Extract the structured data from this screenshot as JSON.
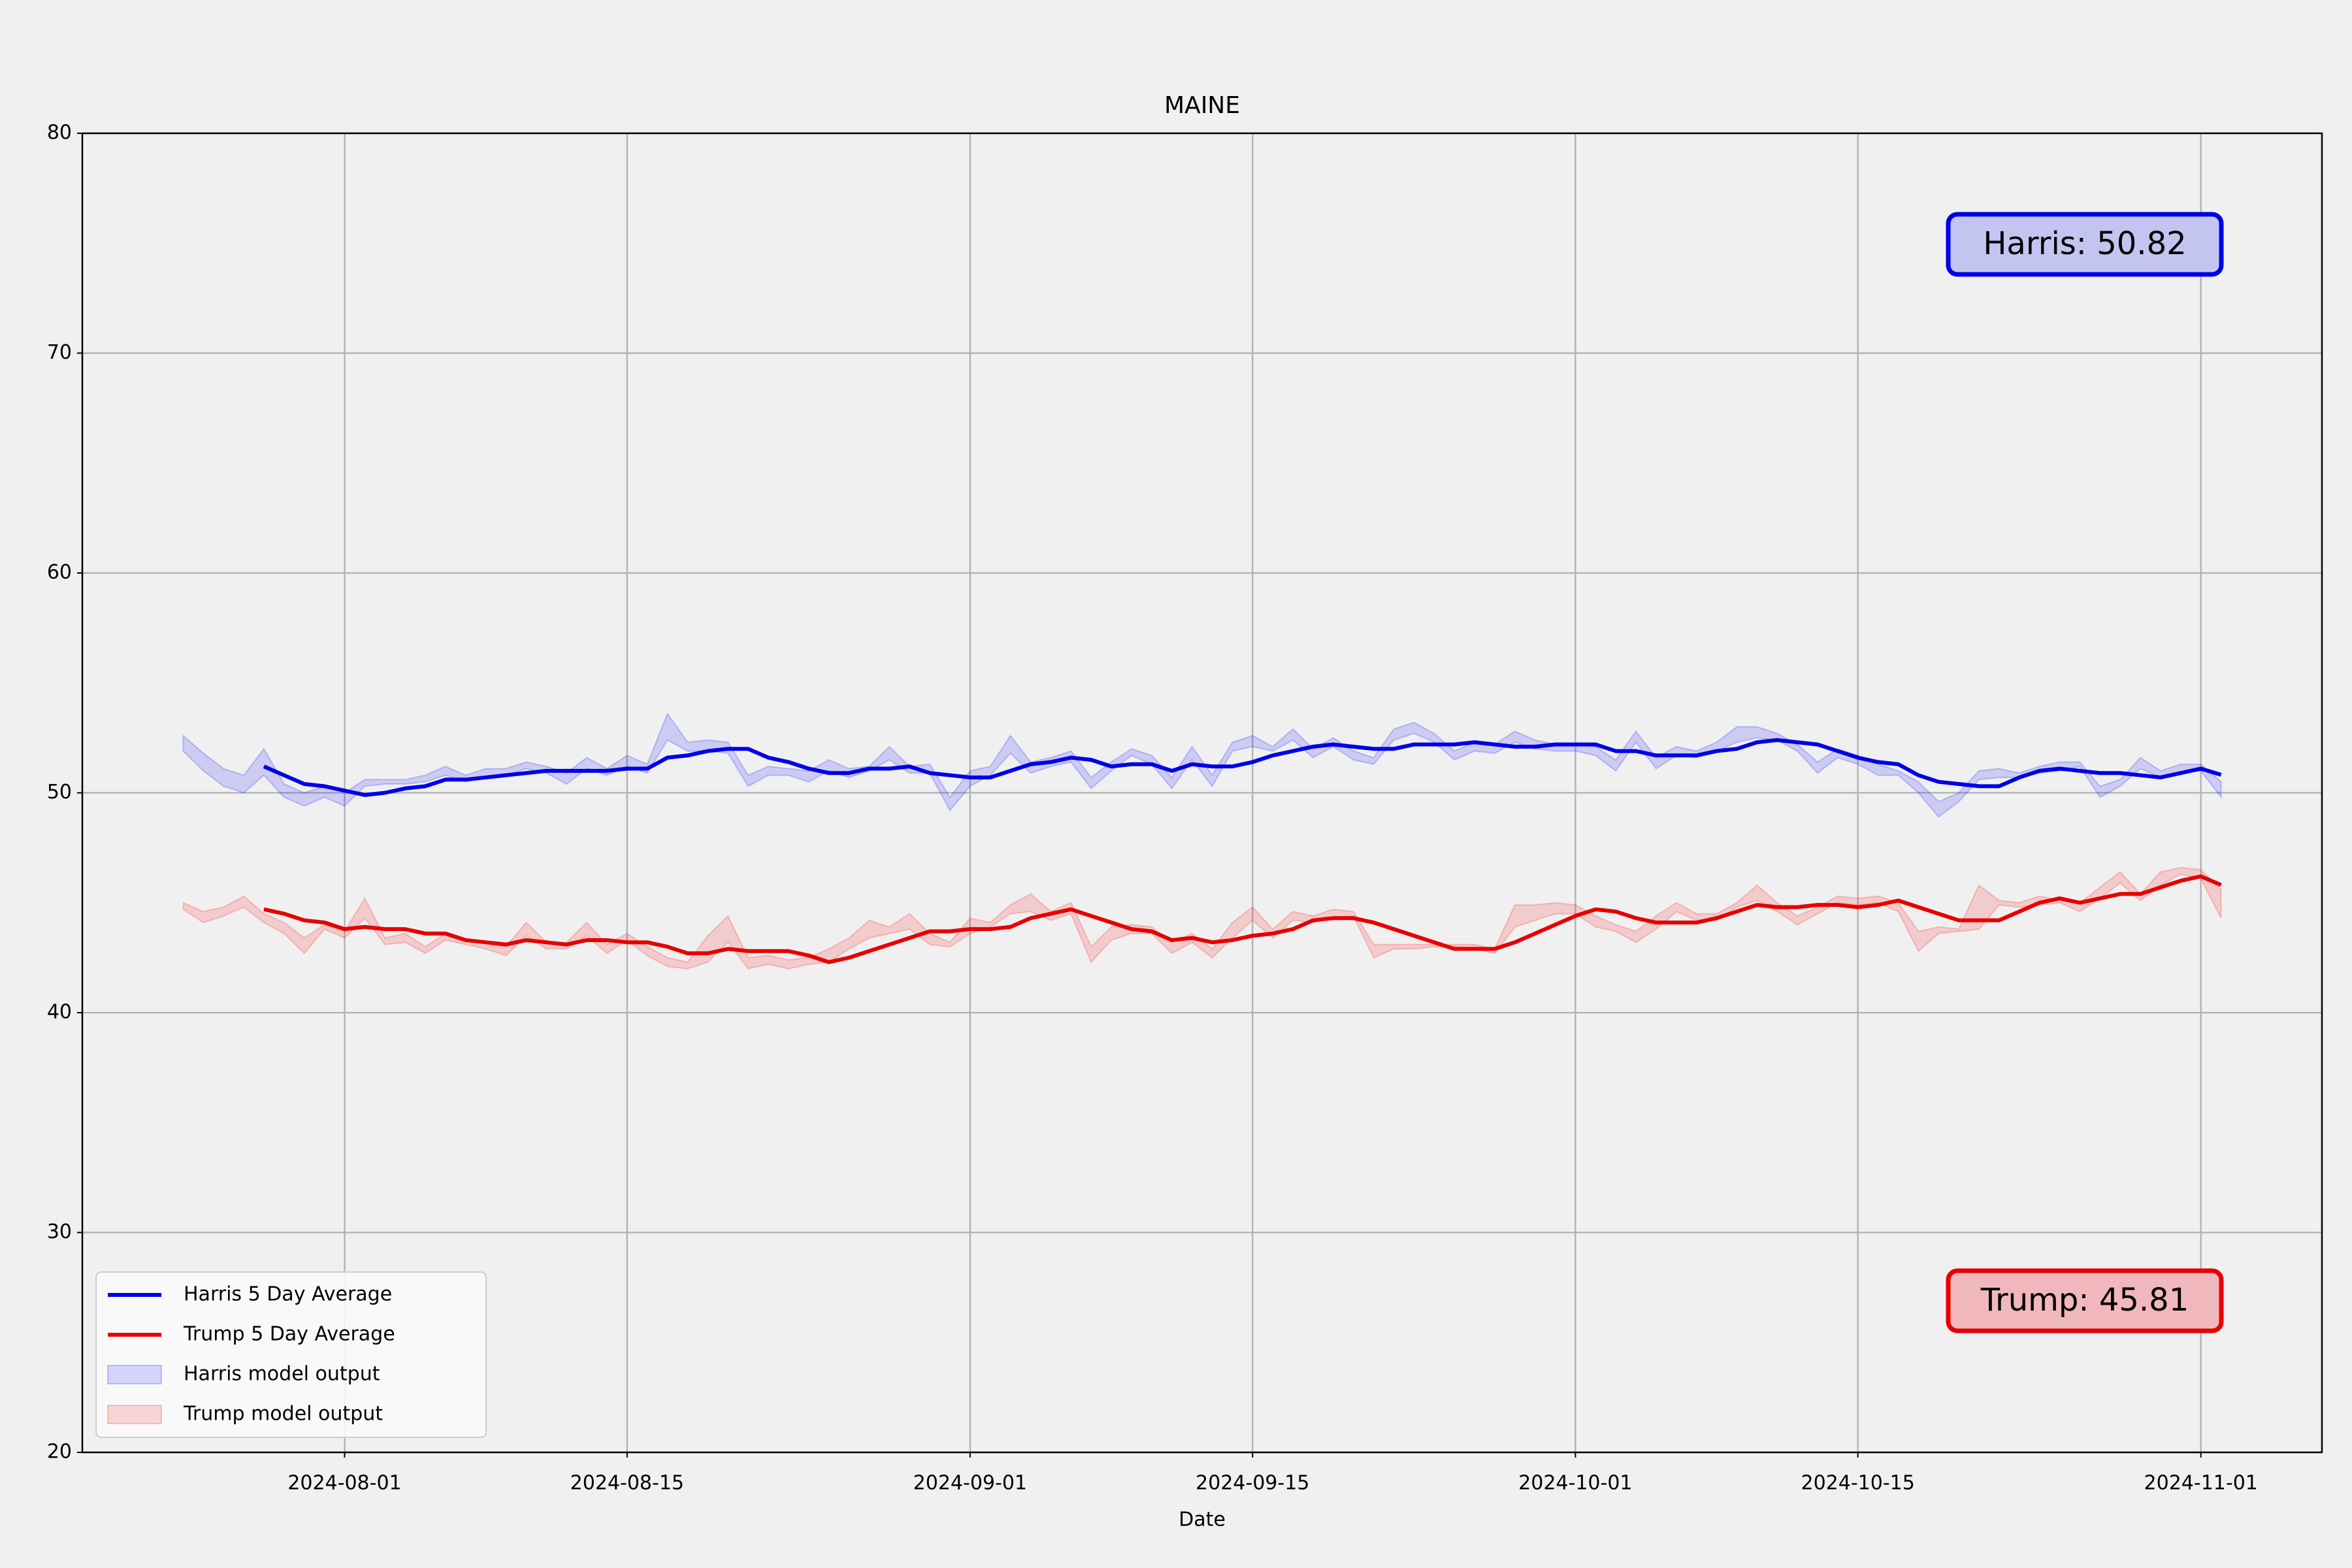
{
  "chart_data": {
    "type": "line",
    "title": "MAINE",
    "xlabel": "Date",
    "x": [
      "2024-07-24",
      "2024-07-25",
      "2024-07-26",
      "2024-07-27",
      "2024-07-28",
      "2024-07-29",
      "2024-07-30",
      "2024-07-31",
      "2024-08-01",
      "2024-08-02",
      "2024-08-03",
      "2024-08-04",
      "2024-08-05",
      "2024-08-06",
      "2024-08-07",
      "2024-08-08",
      "2024-08-09",
      "2024-08-10",
      "2024-08-11",
      "2024-08-12",
      "2024-08-13",
      "2024-08-14",
      "2024-08-15",
      "2024-08-16",
      "2024-08-17",
      "2024-08-18",
      "2024-08-19",
      "2024-08-20",
      "2024-08-21",
      "2024-08-22",
      "2024-08-23",
      "2024-08-24",
      "2024-08-25",
      "2024-08-26",
      "2024-08-27",
      "2024-08-28",
      "2024-08-29",
      "2024-08-30",
      "2024-08-31",
      "2024-09-01",
      "2024-09-02",
      "2024-09-03",
      "2024-09-04",
      "2024-09-05",
      "2024-09-06",
      "2024-09-07",
      "2024-09-08",
      "2024-09-09",
      "2024-09-10",
      "2024-09-11",
      "2024-09-12",
      "2024-09-13",
      "2024-09-14",
      "2024-09-15",
      "2024-09-16",
      "2024-09-17",
      "2024-09-18",
      "2024-09-19",
      "2024-09-20",
      "2024-09-21",
      "2024-09-22",
      "2024-09-23",
      "2024-09-24",
      "2024-09-25",
      "2024-09-26",
      "2024-09-27",
      "2024-09-28",
      "2024-09-29",
      "2024-09-30",
      "2024-10-01",
      "2024-10-02",
      "2024-10-03",
      "2024-10-04",
      "2024-10-05",
      "2024-10-06",
      "2024-10-07",
      "2024-10-08",
      "2024-10-09",
      "2024-10-10",
      "2024-10-11",
      "2024-10-12",
      "2024-10-13",
      "2024-10-14",
      "2024-10-15",
      "2024-10-16",
      "2024-10-17",
      "2024-10-18",
      "2024-10-19",
      "2024-10-20",
      "2024-10-21",
      "2024-10-22",
      "2024-10-23",
      "2024-10-24",
      "2024-10-25",
      "2024-10-26",
      "2024-10-27",
      "2024-10-28",
      "2024-10-29",
      "2024-10-30",
      "2024-10-31",
      "2024-11-01",
      "2024-11-02"
    ],
    "series": [
      {
        "name": "Harris 5 Day Average",
        "color": "#0000e6",
        "values": [
          null,
          null,
          null,
          null,
          51.2,
          50.8,
          50.4,
          50.3,
          50.1,
          49.9,
          50.0,
          50.2,
          50.3,
          50.6,
          50.6,
          50.7,
          50.8,
          50.9,
          51.0,
          51.0,
          51.0,
          51.0,
          51.1,
          51.1,
          51.6,
          51.7,
          51.9,
          52.0,
          52.0,
          51.6,
          51.4,
          51.1,
          50.9,
          50.9,
          51.1,
          51.1,
          51.2,
          50.9,
          50.8,
          50.7,
          50.7,
          51.0,
          51.3,
          51.4,
          51.6,
          51.5,
          51.2,
          51.3,
          51.3,
          51.0,
          51.3,
          51.2,
          51.2,
          51.4,
          51.7,
          51.9,
          52.1,
          52.2,
          52.1,
          52.0,
          52.0,
          52.2,
          52.2,
          52.2,
          52.3,
          52.2,
          52.1,
          52.1,
          52.2,
          52.2,
          52.2,
          51.9,
          51.9,
          51.7,
          51.7,
          51.7,
          51.9,
          52.0,
          52.3,
          52.4,
          52.3,
          52.2,
          51.9,
          51.6,
          51.4,
          51.3,
          50.8,
          50.5,
          50.4,
          50.3,
          50.3,
          50.7,
          51.0,
          51.1,
          51.0,
          50.9,
          50.9,
          50.8,
          50.7,
          50.9,
          51.1,
          50.82
        ]
      },
      {
        "name": "Trump 5 Day Average",
        "color": "#e60000",
        "values": [
          null,
          null,
          null,
          null,
          44.7,
          44.5,
          44.2,
          44.1,
          43.8,
          43.9,
          43.8,
          43.8,
          43.6,
          43.6,
          43.3,
          43.2,
          43.1,
          43.3,
          43.2,
          43.1,
          43.3,
          43.3,
          43.2,
          43.2,
          43.0,
          42.7,
          42.7,
          42.9,
          42.8,
          42.8,
          42.8,
          42.6,
          42.3,
          42.5,
          42.8,
          43.1,
          43.4,
          43.7,
          43.7,
          43.8,
          43.8,
          43.9,
          44.3,
          44.5,
          44.7,
          44.4,
          44.1,
          43.8,
          43.7,
          43.3,
          43.4,
          43.2,
          43.3,
          43.5,
          43.6,
          43.8,
          44.2,
          44.3,
          44.3,
          44.1,
          43.8,
          43.5,
          43.2,
          42.9,
          42.9,
          42.9,
          43.2,
          43.6,
          44.0,
          44.4,
          44.7,
          44.6,
          44.3,
          44.1,
          44.1,
          44.1,
          44.3,
          44.6,
          44.9,
          44.8,
          44.8,
          44.9,
          44.9,
          44.8,
          44.9,
          45.1,
          44.8,
          44.5,
          44.2,
          44.2,
          44.2,
          44.6,
          45.0,
          45.2,
          45.0,
          45.2,
          45.4,
          45.4,
          45.7,
          46.0,
          46.2,
          45.81
        ]
      },
      {
        "name": "Harris model output",
        "color": "#0000ff",
        "lower": [
          51.9,
          51.0,
          50.3,
          50.0,
          50.8,
          49.8,
          49.4,
          49.8,
          49.4,
          50.3,
          50.4,
          50.4,
          50.5,
          50.8,
          50.5,
          50.7,
          50.8,
          51.1,
          50.9,
          50.4,
          51.1,
          50.8,
          51.2,
          50.9,
          52.4,
          51.9,
          51.9,
          51.8,
          50.3,
          50.8,
          50.8,
          50.5,
          51.0,
          50.7,
          51.0,
          51.5,
          50.9,
          50.9,
          49.2,
          50.3,
          50.8,
          51.8,
          50.9,
          51.2,
          51.4,
          50.2,
          51.0,
          51.7,
          51.3,
          50.2,
          51.5,
          50.3,
          51.9,
          52.1,
          51.9,
          52.4,
          51.6,
          52.1,
          51.5,
          51.3,
          52.4,
          52.7,
          52.3,
          51.5,
          51.9,
          51.8,
          52.3,
          52.0,
          51.9,
          51.9,
          51.7,
          51.0,
          52.3,
          51.1,
          51.7,
          51.6,
          51.9,
          52.3,
          52.5,
          52.4,
          51.9,
          50.9,
          51.6,
          51.3,
          50.8,
          50.8,
          50.0,
          48.9,
          49.6,
          50.6,
          50.7,
          50.7,
          50.9,
          51.0,
          51.2,
          49.8,
          50.3,
          51.1,
          50.7,
          50.9,
          51.0,
          49.8
        ],
        "upper": [
          52.6,
          51.8,
          51.1,
          50.8,
          52.0,
          50.4,
          50.0,
          50.3,
          50.0,
          50.6,
          50.6,
          50.6,
          50.8,
          51.2,
          50.8,
          51.1,
          51.1,
          51.4,
          51.2,
          50.9,
          51.6,
          51.1,
          51.7,
          51.3,
          53.6,
          52.3,
          52.4,
          52.3,
          50.8,
          51.2,
          51.1,
          51.0,
          51.5,
          51.1,
          51.2,
          52.1,
          51.2,
          51.3,
          49.8,
          51.0,
          51.2,
          52.6,
          51.4,
          51.6,
          51.9,
          50.7,
          51.4,
          52.0,
          51.7,
          50.7,
          52.1,
          50.8,
          52.3,
          52.6,
          52.1,
          52.9,
          52.0,
          52.5,
          51.9,
          51.6,
          52.9,
          53.2,
          52.7,
          51.9,
          52.3,
          52.2,
          52.8,
          52.4,
          52.2,
          52.2,
          52.1,
          51.5,
          52.8,
          51.6,
          52.1,
          51.9,
          52.3,
          53.0,
          53.0,
          52.7,
          52.2,
          51.4,
          52.0,
          51.7,
          51.3,
          51.0,
          50.5,
          49.6,
          50.0,
          51.0,
          51.1,
          50.9,
          51.2,
          51.4,
          51.4,
          50.3,
          50.6,
          51.6,
          51.0,
          51.3,
          51.3,
          50.5
        ]
      },
      {
        "name": "Trump model output",
        "color": "#ff0000",
        "lower": [
          44.7,
          44.1,
          44.4,
          44.8,
          44.1,
          43.6,
          42.7,
          43.8,
          43.4,
          44.3,
          43.1,
          43.2,
          42.7,
          43.3,
          43.1,
          42.9,
          42.6,
          43.5,
          42.9,
          42.9,
          43.5,
          42.7,
          43.3,
          42.6,
          42.1,
          42.0,
          42.3,
          43.2,
          42.0,
          42.2,
          42.0,
          42.2,
          42.3,
          42.9,
          43.4,
          43.6,
          43.8,
          43.1,
          43.0,
          43.6,
          43.9,
          44.5,
          44.6,
          44.2,
          44.5,
          42.3,
          43.3,
          43.6,
          43.6,
          42.7,
          43.2,
          42.5,
          43.4,
          44.2,
          43.4,
          44.2,
          44.1,
          44.3,
          44.4,
          42.5,
          42.9,
          42.9,
          43.0,
          43.0,
          42.9,
          42.7,
          43.9,
          44.2,
          44.5,
          44.5,
          43.9,
          43.7,
          43.2,
          43.8,
          44.6,
          44.2,
          44.2,
          44.8,
          45.1,
          44.6,
          44.0,
          44.5,
          45.0,
          44.9,
          45.0,
          44.6,
          42.8,
          43.6,
          43.7,
          43.8,
          44.9,
          44.8,
          44.9,
          45.0,
          44.6,
          45.2,
          45.9,
          45.1,
          45.8,
          46.3,
          46.1,
          44.3
        ],
        "upper": [
          45.0,
          44.6,
          44.8,
          45.3,
          44.5,
          44.1,
          43.4,
          44.0,
          43.7,
          45.2,
          43.4,
          43.6,
          43.0,
          43.6,
          43.3,
          43.2,
          43.0,
          44.1,
          43.2,
          43.2,
          44.1,
          43.1,
          43.6,
          43.0,
          42.5,
          42.3,
          43.5,
          44.4,
          42.5,
          42.6,
          42.4,
          42.5,
          42.9,
          43.4,
          44.2,
          43.9,
          44.5,
          43.6,
          43.2,
          44.3,
          44.1,
          44.9,
          45.4,
          44.6,
          45.0,
          43.0,
          43.9,
          44.0,
          43.9,
          43.2,
          43.6,
          42.9,
          44.1,
          44.8,
          43.8,
          44.6,
          44.4,
          44.7,
          44.6,
          43.1,
          43.1,
          43.1,
          43.1,
          43.1,
          43.1,
          42.9,
          44.9,
          44.9,
          45.0,
          44.9,
          44.4,
          44.0,
          43.7,
          44.4,
          45.0,
          44.5,
          44.5,
          45.0,
          45.8,
          45.0,
          44.4,
          44.8,
          45.3,
          45.2,
          45.3,
          45.0,
          43.7,
          43.9,
          43.8,
          45.8,
          45.1,
          45.0,
          45.3,
          45.1,
          45.0,
          45.7,
          46.4,
          45.4,
          46.4,
          46.6,
          46.5,
          45.6
        ]
      }
    ],
    "annotations": [
      "Harris: 50.82",
      "Trump: 45.81"
    ],
    "xlim": [
      "2024-07-19",
      "2024-11-07"
    ],
    "xticks": [
      "2024-08-01",
      "2024-08-15",
      "2024-09-01",
      "2024-09-15",
      "2024-10-01",
      "2024-10-15",
      "2024-11-01"
    ],
    "ylim": [
      20,
      80
    ],
    "yticks": [
      20,
      30,
      40,
      50,
      60,
      70,
      80
    ],
    "grid": true,
    "legend": "lower left"
  }
}
